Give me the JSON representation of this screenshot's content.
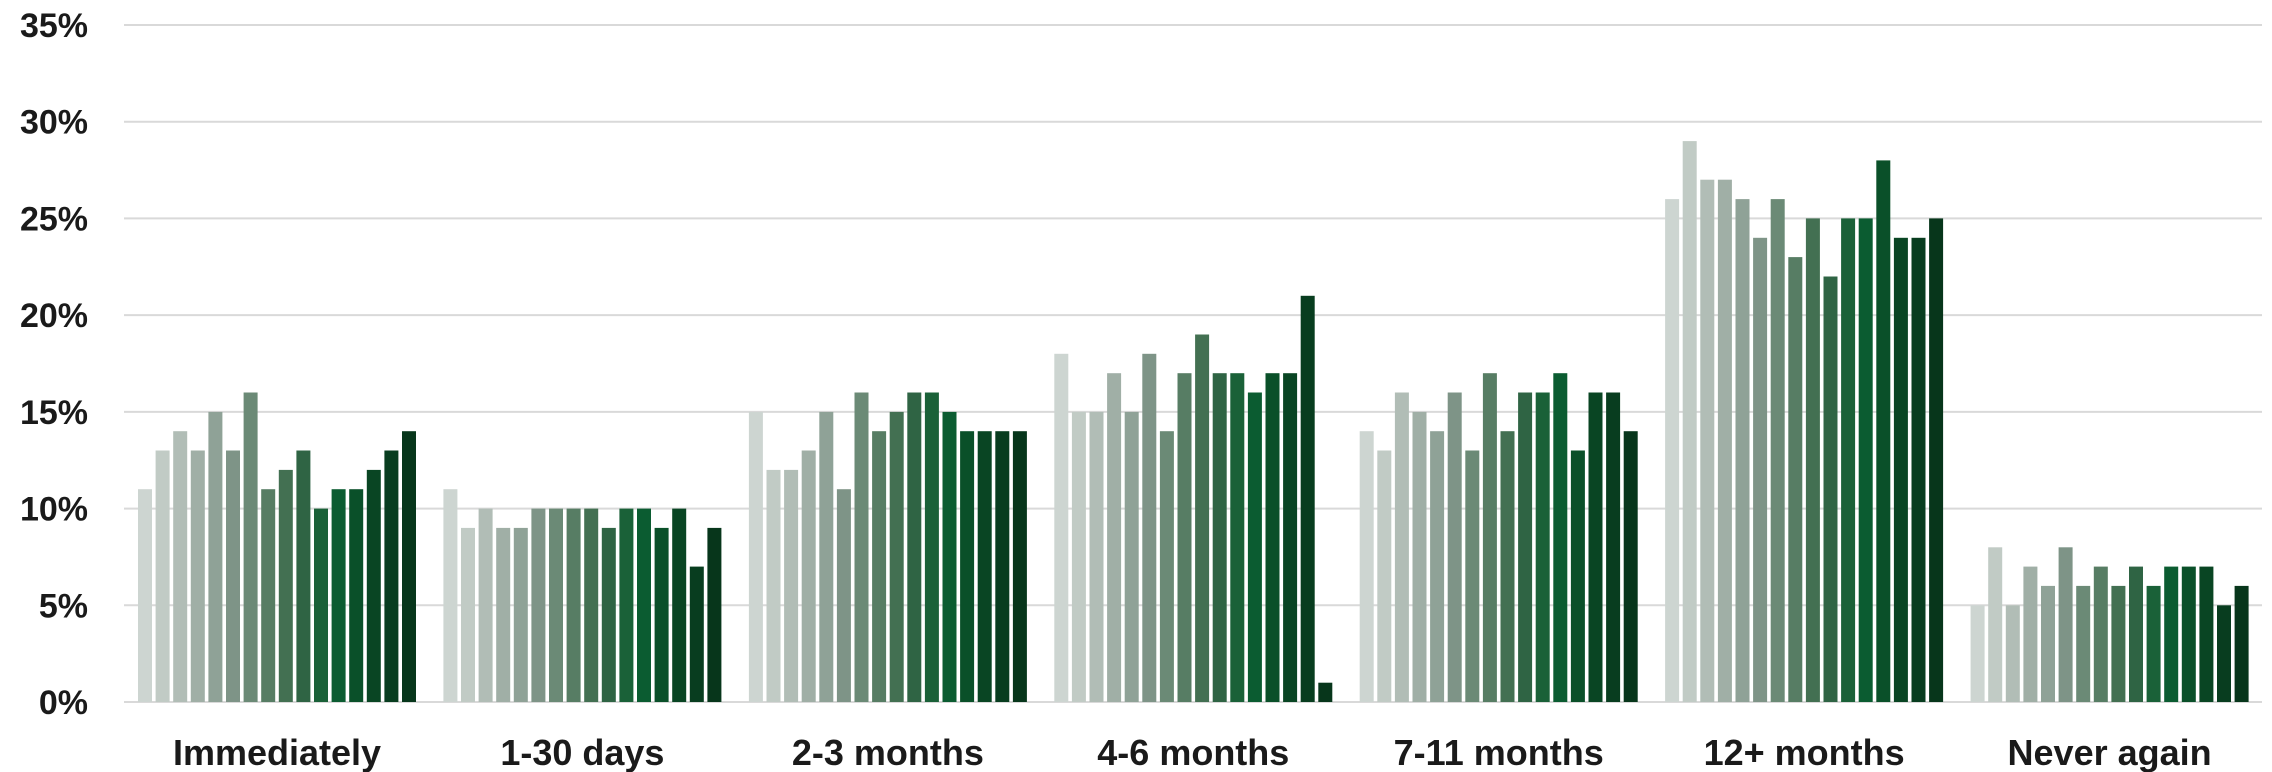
{
  "chart_data": {
    "type": "bar",
    "title": "",
    "xlabel": "",
    "ylabel": "",
    "ylim": [
      0,
      35
    ],
    "y_ticks": [
      0,
      5,
      10,
      15,
      20,
      25,
      30,
      35
    ],
    "y_tick_labels": [
      "0%",
      "5%",
      "10%",
      "15%",
      "20%",
      "25%",
      "30%",
      "35%"
    ],
    "grid": true,
    "legend": "none",
    "categories": [
      "Immediately",
      "1-30 days",
      "2-3 months",
      "4-6 months",
      "7-11 months",
      "12+ months",
      "Never again"
    ],
    "series": [
      {
        "values": [
          11,
          11,
          15,
          18,
          14,
          26,
          5
        ]
      },
      {
        "values": [
          13,
          9,
          12,
          15,
          13,
          29,
          8
        ]
      },
      {
        "values": [
          14,
          10,
          12,
          15,
          16,
          27,
          5
        ]
      },
      {
        "values": [
          13,
          9,
          13,
          17,
          15,
          27,
          7
        ]
      },
      {
        "values": [
          15,
          9,
          15,
          15,
          14,
          26,
          6
        ]
      },
      {
        "values": [
          13,
          10,
          11,
          18,
          16,
          24,
          8
        ]
      },
      {
        "values": [
          16,
          10,
          16,
          14,
          13,
          26,
          6
        ]
      },
      {
        "values": [
          11,
          10,
          14,
          17,
          17,
          23,
          7
        ]
      },
      {
        "values": [
          12,
          10,
          15,
          19,
          14,
          25,
          6
        ]
      },
      {
        "values": [
          13,
          9,
          16,
          17,
          16,
          22,
          7
        ]
      },
      {
        "values": [
          10,
          10,
          16,
          17,
          16,
          25,
          6
        ]
      },
      {
        "values": [
          11,
          10,
          15,
          16,
          17,
          25,
          7
        ]
      },
      {
        "values": [
          11,
          9,
          14,
          17,
          13,
          28,
          7
        ]
      },
      {
        "values": [
          12,
          10,
          14,
          17,
          16,
          24,
          7
        ]
      },
      {
        "values": [
          13,
          7,
          14,
          21,
          16,
          24,
          5
        ]
      },
      {
        "values": [
          14,
          9,
          14,
          1,
          14,
          25,
          6
        ]
      }
    ],
    "series_colors": [
      "#cdd5d1",
      "#c1cbc5",
      "#b1bdb6",
      "#a0afa6",
      "#8fa297",
      "#7e9487",
      "#6b8a76",
      "#577d64",
      "#437052",
      "#2f6444",
      "#1a6138",
      "#0b5c31",
      "#0a5029",
      "#094523",
      "#083d1f",
      "#07361b"
    ]
  }
}
